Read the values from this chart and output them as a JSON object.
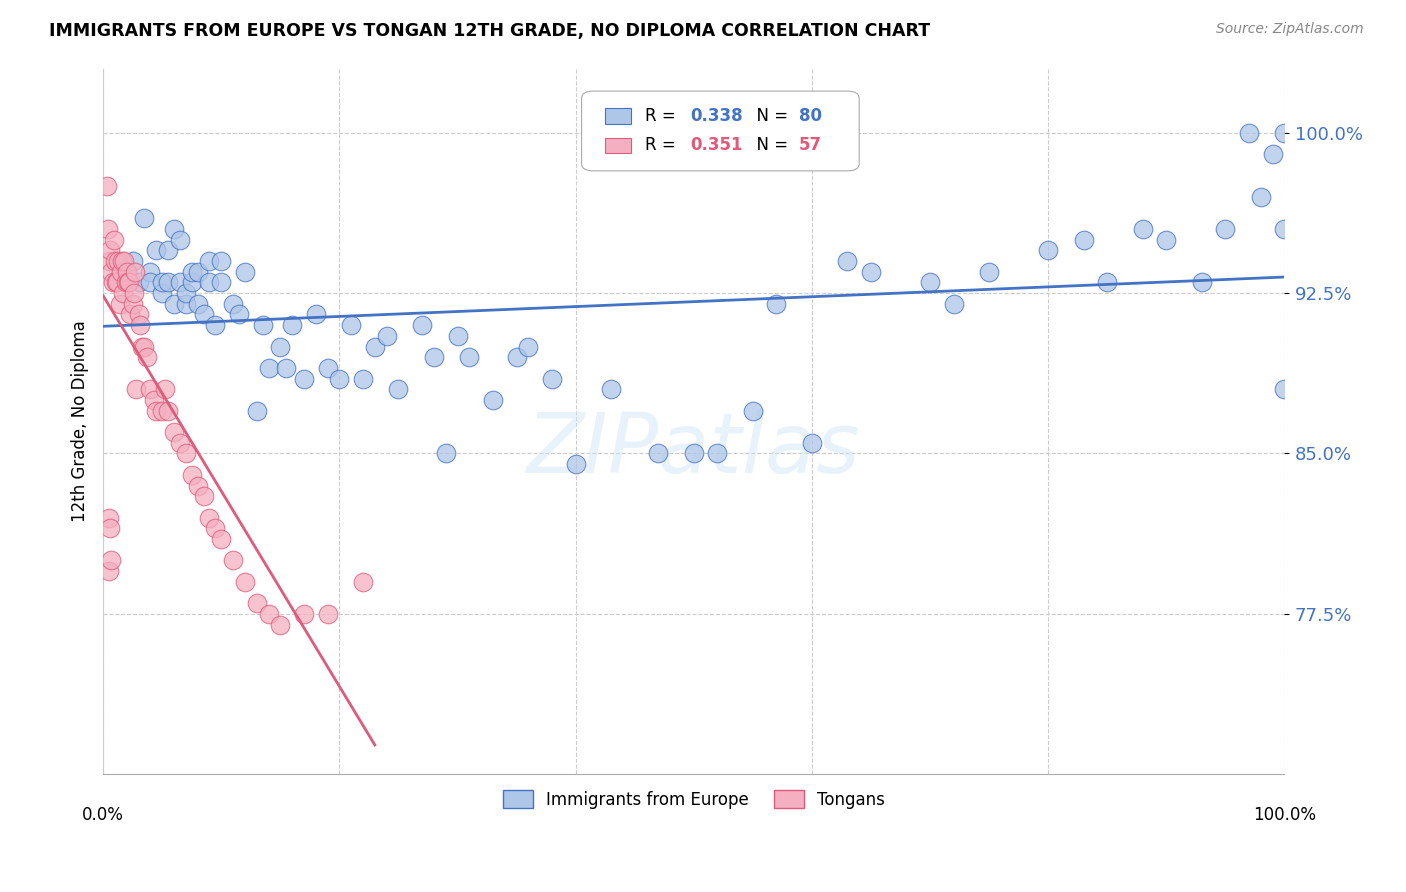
{
  "title": "IMMIGRANTS FROM EUROPE VS TONGAN 12TH GRADE, NO DIPLOMA CORRELATION CHART",
  "source": "Source: ZipAtlas.com",
  "ylabel": "12th Grade, No Diploma",
  "ytick_labels": [
    "77.5%",
    "85.0%",
    "92.5%",
    "100.0%"
  ],
  "ytick_values": [
    77.5,
    85.0,
    92.5,
    100.0
  ],
  "xlim": [
    0.0,
    100.0
  ],
  "ylim": [
    70.0,
    103.0
  ],
  "blue_color": "#4472c4",
  "pink_color": "#e05a7a",
  "blue_fill": "#aec6e8",
  "pink_fill": "#f4afc0",
  "watermark": "ZIPatlas",
  "blue_R": "0.338",
  "blue_N": "80",
  "pink_R": "0.351",
  "pink_N": "57",
  "blue_scatter_x": [
    2.0,
    2.5,
    3.0,
    3.5,
    4.0,
    4.0,
    4.5,
    5.0,
    5.0,
    5.5,
    5.5,
    6.0,
    6.0,
    6.5,
    6.5,
    7.0,
    7.0,
    7.5,
    7.5,
    8.0,
    8.0,
    8.5,
    9.0,
    9.0,
    9.5,
    10.0,
    10.0,
    11.0,
    11.5,
    12.0,
    13.0,
    13.5,
    14.0,
    15.0,
    15.5,
    16.0,
    17.0,
    18.0,
    19.0,
    20.0,
    21.0,
    22.0,
    23.0,
    24.0,
    25.0,
    27.0,
    28.0,
    29.0,
    30.0,
    31.0,
    33.0,
    35.0,
    36.0,
    38.0,
    40.0,
    43.0,
    47.0,
    50.0,
    52.0,
    55.0,
    57.0,
    60.0,
    63.0,
    65.0,
    70.0,
    72.0,
    75.0,
    80.0,
    83.0,
    85.0,
    88.0,
    90.0,
    93.0,
    95.0,
    97.0,
    98.0,
    99.0,
    100.0,
    100.0,
    100.0
  ],
  "blue_scatter_y": [
    93.5,
    94.0,
    93.0,
    96.0,
    93.5,
    93.0,
    94.5,
    92.5,
    93.0,
    93.0,
    94.5,
    95.5,
    92.0,
    93.0,
    95.0,
    92.0,
    92.5,
    93.0,
    93.5,
    92.0,
    93.5,
    91.5,
    93.0,
    94.0,
    91.0,
    93.0,
    94.0,
    92.0,
    91.5,
    93.5,
    87.0,
    91.0,
    89.0,
    90.0,
    89.0,
    91.0,
    88.5,
    91.5,
    89.0,
    88.5,
    91.0,
    88.5,
    90.0,
    90.5,
    88.0,
    91.0,
    89.5,
    85.0,
    90.5,
    89.5,
    87.5,
    89.5,
    90.0,
    88.5,
    84.5,
    88.0,
    85.0,
    85.0,
    85.0,
    87.0,
    92.0,
    85.5,
    94.0,
    93.5,
    93.0,
    92.0,
    93.5,
    94.5,
    95.0,
    93.0,
    95.5,
    95.0,
    93.0,
    95.5,
    100.0,
    97.0,
    99.0,
    95.5,
    100.0,
    88.0
  ],
  "pink_scatter_x": [
    0.3,
    0.4,
    0.5,
    0.6,
    0.7,
    0.8,
    0.9,
    1.0,
    1.1,
    1.2,
    1.3,
    1.4,
    1.5,
    1.6,
    1.7,
    1.8,
    1.9,
    2.0,
    2.1,
    2.2,
    2.3,
    2.5,
    2.6,
    2.7,
    2.8,
    3.0,
    3.1,
    3.3,
    3.5,
    3.7,
    4.0,
    4.3,
    4.5,
    5.0,
    5.2,
    5.5,
    6.0,
    6.5,
    7.0,
    7.5,
    8.0,
    8.5,
    9.0,
    9.5,
    10.0,
    11.0,
    12.0,
    13.0,
    14.0,
    15.0,
    17.0,
    19.0,
    22.0,
    0.5,
    0.5,
    0.6,
    0.7
  ],
  "pink_scatter_y": [
    97.5,
    95.5,
    94.0,
    94.5,
    93.5,
    93.0,
    95.0,
    94.0,
    93.0,
    93.0,
    94.0,
    92.0,
    93.5,
    94.0,
    92.5,
    94.0,
    93.0,
    93.5,
    93.0,
    93.0,
    91.5,
    92.0,
    92.5,
    93.5,
    88.0,
    91.5,
    91.0,
    90.0,
    90.0,
    89.5,
    88.0,
    87.5,
    87.0,
    87.0,
    88.0,
    87.0,
    86.0,
    85.5,
    85.0,
    84.0,
    83.5,
    83.0,
    82.0,
    81.5,
    81.0,
    80.0,
    79.0,
    78.0,
    77.5,
    77.0,
    77.5,
    77.5,
    79.0,
    82.0,
    79.5,
    81.5,
    80.0
  ]
}
